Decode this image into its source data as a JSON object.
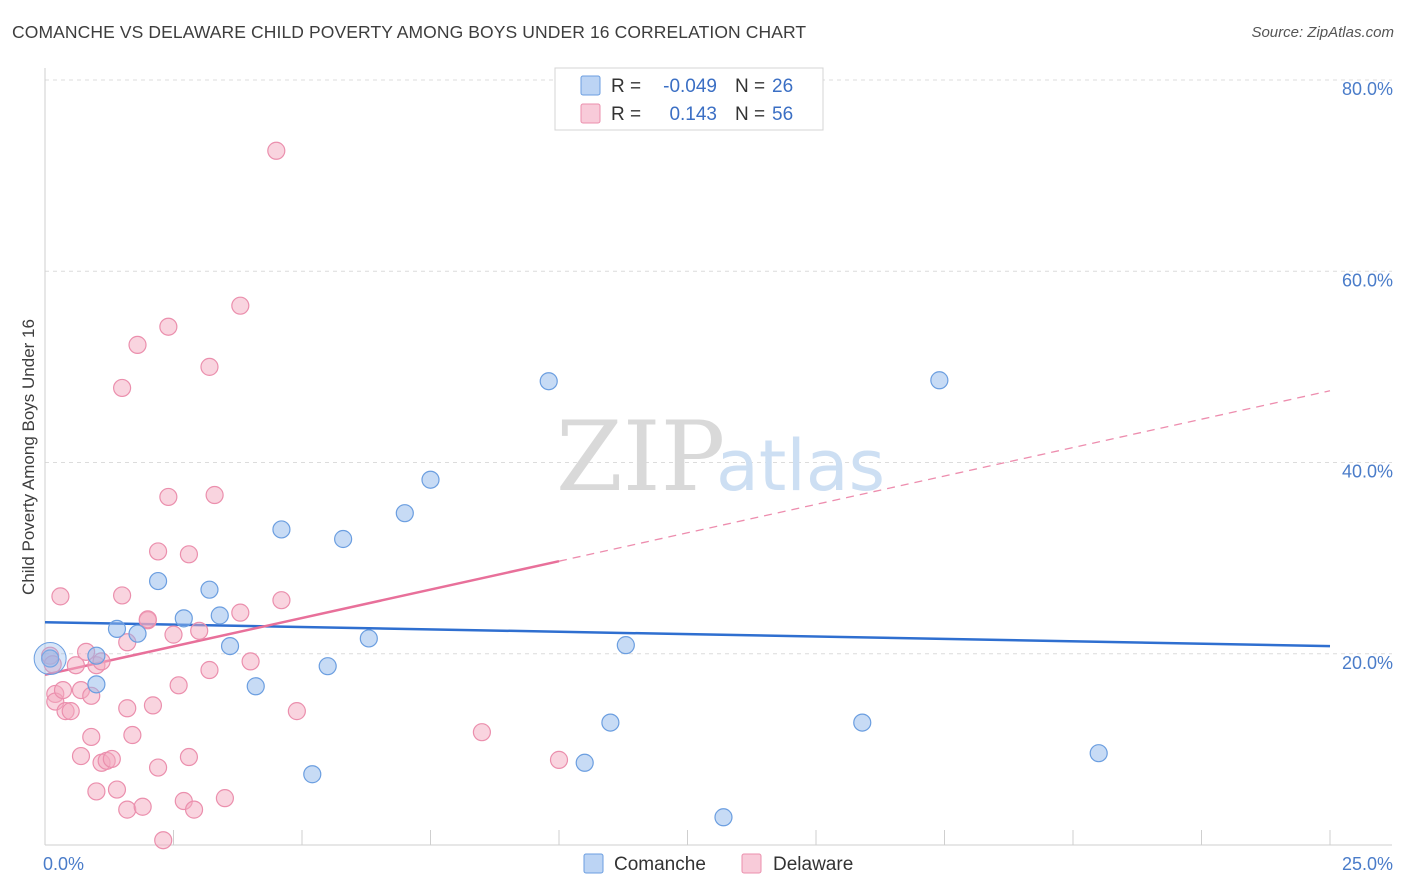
{
  "title": "COMANCHE VS DELAWARE CHILD POVERTY AMONG BOYS UNDER 16 CORRELATION CHART",
  "source": "Source: ZipAtlas.com",
  "watermark": {
    "zip": "ZIP",
    "atlas": "atlas"
  },
  "colors": {
    "comanche": "#8fb8ec",
    "comanche_line": "#2f6fd0",
    "delaware": "#f3a9c0",
    "delaware_line": "#e8709a",
    "grid": "#dcdcdc"
  },
  "chart_data": {
    "type": "scatter",
    "title": "COMANCHE VS DELAWARE CHILD POVERTY AMONG BOYS UNDER 16 CORRELATION CHART",
    "xlabel": "",
    "ylabel": "Child Poverty Among Boys Under 16",
    "xlim": [
      0,
      25
    ],
    "ylim": [
      0,
      80
    ],
    "x_tick_labels": {
      "min": "0.0%",
      "max": "25.0%"
    },
    "y_ticks": [
      {
        "value": 20,
        "label": "20.0%"
      },
      {
        "value": 40,
        "label": "40.0%"
      },
      {
        "value": 60,
        "label": "60.0%"
      },
      {
        "value": 80,
        "label": "80.0%"
      }
    ],
    "grid": true,
    "legend_position": "top-center",
    "series": [
      {
        "name": "Comanche",
        "r_label": "R =",
        "r": "-0.049",
        "n_label": "N =",
        "n": "26",
        "trend": {
          "x0": 0,
          "y0": 23.3,
          "x1": 25,
          "y1": 20.8,
          "solid_until": 25
        },
        "points": [
          [
            0.1,
            19.5
          ],
          [
            1.0,
            19.8
          ],
          [
            1.0,
            16.8
          ],
          [
            1.4,
            22.6
          ],
          [
            1.8,
            22.1
          ],
          [
            2.2,
            27.6
          ],
          [
            2.7,
            23.7
          ],
          [
            3.2,
            26.7
          ],
          [
            3.4,
            24.0
          ],
          [
            3.6,
            20.8
          ],
          [
            4.1,
            16.6
          ],
          [
            4.6,
            33.0
          ],
          [
            5.2,
            7.4
          ],
          [
            5.5,
            18.7
          ],
          [
            5.8,
            32.0
          ],
          [
            6.3,
            21.6
          ],
          [
            7.0,
            34.7
          ],
          [
            7.5,
            38.2
          ],
          [
            9.8,
            48.5
          ],
          [
            10.5,
            8.6
          ],
          [
            11.0,
            12.8
          ],
          [
            11.3,
            20.9
          ],
          [
            15.9,
            12.8
          ],
          [
            17.4,
            48.6
          ],
          [
            20.5,
            9.6
          ],
          [
            13.2,
            2.9
          ]
        ]
      },
      {
        "name": "Delaware",
        "r_label": "R =",
        "r": "0.143",
        "n_label": "N =",
        "n": "56",
        "trend": {
          "x0": 0,
          "y0": 17.8,
          "x1": 25,
          "y1": 47.5,
          "solid_until": 10.0
        },
        "points": [
          [
            0.1,
            19.8
          ],
          [
            0.2,
            15.8
          ],
          [
            0.2,
            15.0
          ],
          [
            0.3,
            26.0
          ],
          [
            0.35,
            16.2
          ],
          [
            0.4,
            14.0
          ],
          [
            0.5,
            14.0
          ],
          [
            0.6,
            18.8
          ],
          [
            0.7,
            16.2
          ],
          [
            0.7,
            9.3
          ],
          [
            0.8,
            20.2
          ],
          [
            0.9,
            15.6
          ],
          [
            0.9,
            11.3
          ],
          [
            1.0,
            18.8
          ],
          [
            1.0,
            5.6
          ],
          [
            1.1,
            19.2
          ],
          [
            1.1,
            8.6
          ],
          [
            1.2,
            8.8
          ],
          [
            1.3,
            9.0
          ],
          [
            1.4,
            5.8
          ],
          [
            1.5,
            47.8
          ],
          [
            1.5,
            26.1
          ],
          [
            1.6,
            21.2
          ],
          [
            1.6,
            14.3
          ],
          [
            1.6,
            3.7
          ],
          [
            1.7,
            11.5
          ],
          [
            1.8,
            52.3
          ],
          [
            1.9,
            4.0
          ],
          [
            2.0,
            23.5
          ],
          [
            2.1,
            14.6
          ],
          [
            2.2,
            8.1
          ],
          [
            2.2,
            30.7
          ],
          [
            2.3,
            0.5
          ],
          [
            2.4,
            54.2
          ],
          [
            2.4,
            36.4
          ],
          [
            2.5,
            22.0
          ],
          [
            2.6,
            16.7
          ],
          [
            2.7,
            4.6
          ],
          [
            2.8,
            30.4
          ],
          [
            2.8,
            9.2
          ],
          [
            2.9,
            3.7
          ],
          [
            3.0,
            22.4
          ],
          [
            3.2,
            18.3
          ],
          [
            3.2,
            50.0
          ],
          [
            3.3,
            36.6
          ],
          [
            3.5,
            4.9
          ],
          [
            3.8,
            56.4
          ],
          [
            3.8,
            24.3
          ],
          [
            4.0,
            19.2
          ],
          [
            4.5,
            72.6
          ],
          [
            4.6,
            25.6
          ],
          [
            4.9,
            14.0
          ],
          [
            8.5,
            11.8
          ],
          [
            10.0,
            8.9
          ],
          [
            2.0,
            23.6
          ],
          [
            0.15,
            18.9
          ]
        ]
      }
    ]
  }
}
